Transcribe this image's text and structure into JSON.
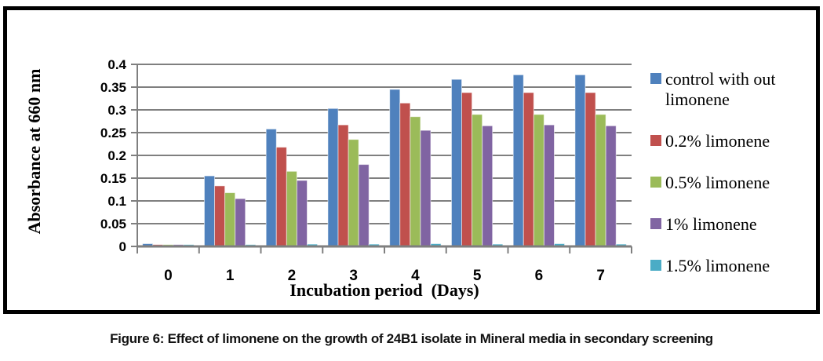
{
  "figure": {
    "caption": "Figure 6: Effect of limonene on the growth of 24B1 isolate in Mineral media in secondary screening"
  },
  "chart_data": {
    "type": "bar",
    "title": "",
    "xlabel": "Incubation period  (Days)",
    "ylabel": "Absorbance at 660 nm",
    "categories": [
      "0",
      "1",
      "2",
      "3",
      "4",
      "5",
      "6",
      "7"
    ],
    "ylim": [
      0,
      0.4
    ],
    "ytick_step": 0.05,
    "yticks": [
      "0",
      "0.05",
      "0.1",
      "0.15",
      "0.2",
      "0.25",
      "0.3",
      "0.35",
      "0.4"
    ],
    "grid": true,
    "legend_position": "right",
    "series": [
      {
        "name": "control with out limonene",
        "color": "#4F81BD",
        "values": [
          0.006,
          0.155,
          0.258,
          0.303,
          0.345,
          0.367,
          0.377,
          0.377
        ]
      },
      {
        "name": "0.2% limonene",
        "color": "#C0504D",
        "values": [
          0.004,
          0.133,
          0.218,
          0.267,
          0.315,
          0.338,
          0.338,
          0.338
        ]
      },
      {
        "name": "0.5% limonene",
        "color": "#9BBB59",
        "values": [
          0.004,
          0.118,
          0.165,
          0.235,
          0.285,
          0.29,
          0.29,
          0.29
        ]
      },
      {
        "name": "1% limonene",
        "color": "#8064A2",
        "values": [
          0.004,
          0.105,
          0.145,
          0.18,
          0.255,
          0.265,
          0.267,
          0.265
        ]
      },
      {
        "name": "1.5% limonene",
        "color": "#4BACC6",
        "values": [
          0.004,
          0.004,
          0.005,
          0.005,
          0.006,
          0.005,
          0.006,
          0.005
        ]
      }
    ],
    "colors": {
      "gridline": "#7f7f7f",
      "axis": "#7f7f7f",
      "figure_border": "#000000",
      "bar_edge": "rgba(255,255,255,0.55)"
    }
  }
}
